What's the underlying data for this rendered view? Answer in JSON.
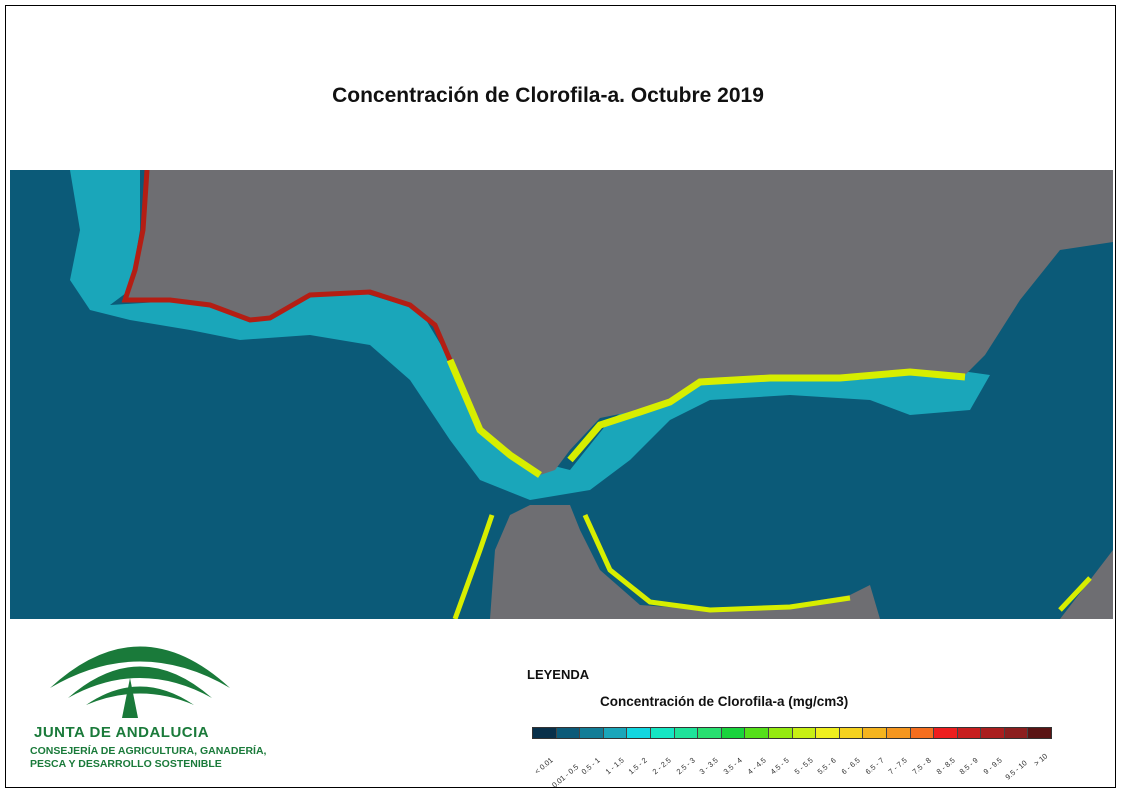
{
  "title": "Concentración de Clorofila-a. Octubre 2019",
  "colors": {
    "sea": "#0b5a78",
    "land": "#6e6e72",
    "coast_high": "#b41e14",
    "coast_mid": "#d7ee00",
    "shelf": "#1aa6ba"
  },
  "logo": {
    "name": "JUNTA DE ANDALUCIA",
    "subtitle_line1": "CONSEJERÍA DE AGRICULTURA, GANADERÍA,",
    "subtitle_line2": "PESCA Y DESARROLLO SOSTENIBLE"
  },
  "legend": {
    "heading": "LEYENDA",
    "subtitle": "Concentración de Clorofila-a (mg/cm3)",
    "classes": [
      {
        "label": "< 0.01",
        "color": "#08304a"
      },
      {
        "label": "0.01 - 0.5",
        "color": "#0b5a78"
      },
      {
        "label": "0.5 - 1",
        "color": "#127d97"
      },
      {
        "label": "1 - 1.5",
        "color": "#1aa6ba"
      },
      {
        "label": "1.5 - 2",
        "color": "#12d6e0"
      },
      {
        "label": "2 - 2.5",
        "color": "#15e6c3"
      },
      {
        "label": "2.5 - 3",
        "color": "#1ee39a"
      },
      {
        "label": "3 - 3.5",
        "color": "#28e070"
      },
      {
        "label": "3.5 - 4",
        "color": "#19d43c"
      },
      {
        "label": "4 - 4.5",
        "color": "#55e01a"
      },
      {
        "label": "4.5 - 5",
        "color": "#95ea10"
      },
      {
        "label": "5 - 5.5",
        "color": "#c8f014"
      },
      {
        "label": "5.5 - 6",
        "color": "#f0f01e"
      },
      {
        "label": "6 - 6.5",
        "color": "#f5d21e"
      },
      {
        "label": "6.5 - 7",
        "color": "#f5b41e"
      },
      {
        "label": "7 - 7.5",
        "color": "#f5961e"
      },
      {
        "label": "7.5 - 8",
        "color": "#f56e1e"
      },
      {
        "label": "8 - 8.5",
        "color": "#ee1e1e"
      },
      {
        "label": "8.5 - 9",
        "color": "#c81e1e"
      },
      {
        "label": "9 - 9.5",
        "color": "#aa1e1e"
      },
      {
        "label": "9.5 - 10",
        "color": "#8c1e1e"
      },
      {
        "label": "> 10",
        "color": "#5a1414"
      }
    ]
  }
}
